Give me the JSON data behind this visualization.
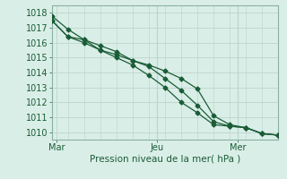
{
  "xlabel": "Pression niveau de la mer( hPa )",
  "background_color": "#daeee8",
  "grid_color": "#c0d8d0",
  "line_color": "#1a5c36",
  "spine_color": "#8ab0a0",
  "xlim": [
    0,
    14
  ],
  "ylim": [
    1009.5,
    1018.5
  ],
  "yticks": [
    1010,
    1011,
    1012,
    1013,
    1014,
    1015,
    1016,
    1017,
    1018
  ],
  "xtick_positions": [
    0.3,
    6.5,
    11.5
  ],
  "xtick_labels": [
    "Mar",
    "Jeu",
    "Mer"
  ],
  "vlines": [
    6.5,
    11.5
  ],
  "series1_x": [
    0,
    1,
    2,
    3,
    4,
    5,
    6,
    7,
    8,
    9,
    10,
    11,
    12,
    13,
    14
  ],
  "series1_y": [
    1017.8,
    1016.9,
    1016.2,
    1015.5,
    1015.2,
    1014.8,
    1014.5,
    1014.1,
    1013.6,
    1012.9,
    1011.1,
    1010.5,
    1010.3,
    1009.9,
    1009.8
  ],
  "series2_x": [
    0,
    1,
    2,
    3,
    4,
    5,
    6,
    7,
    8,
    9,
    10,
    11,
    12,
    13,
    14
  ],
  "series2_y": [
    1017.5,
    1016.4,
    1016.2,
    1015.8,
    1015.4,
    1014.8,
    1014.4,
    1013.6,
    1012.8,
    1011.8,
    1010.7,
    1010.4,
    1010.3,
    1009.9,
    1009.8
  ],
  "series3_x": [
    0,
    1,
    2,
    3,
    4,
    5,
    6,
    7,
    8,
    9,
    10,
    11,
    12,
    13,
    14
  ],
  "series3_y": [
    1017.5,
    1016.4,
    1016.0,
    1015.5,
    1015.0,
    1014.5,
    1013.8,
    1013.0,
    1012.0,
    1011.3,
    1010.5,
    1010.4,
    1010.3,
    1009.9,
    1009.8
  ],
  "marker_size": 2.5,
  "line_width": 0.9,
  "font_size_tick": 7,
  "font_size_xlabel": 7.5
}
